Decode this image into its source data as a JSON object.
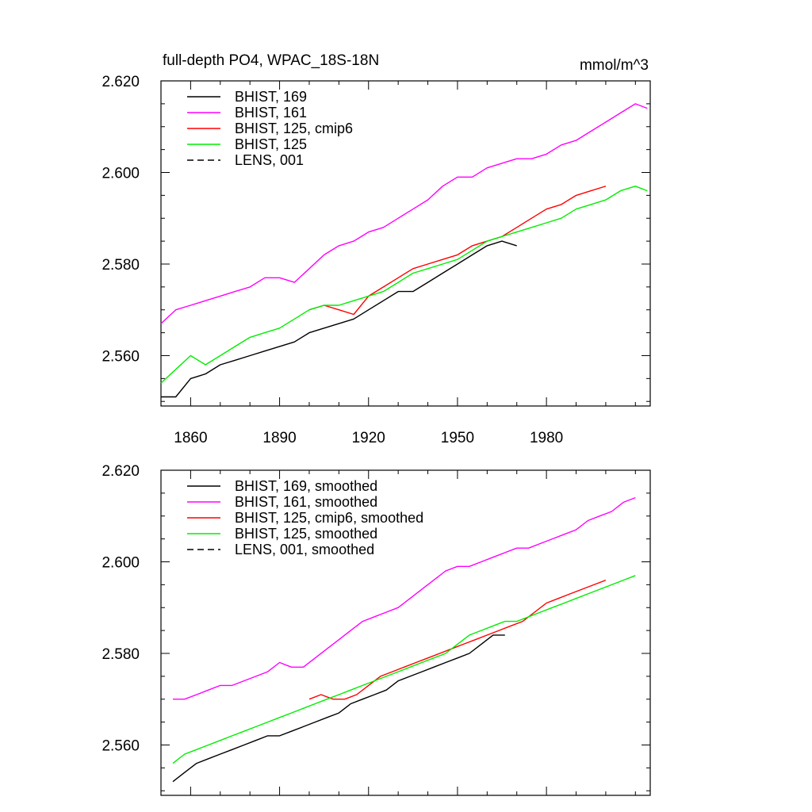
{
  "figure": {
    "title_left": "full-depth PO4, WPAC_18S-18N",
    "title_right": "mmol/m^3"
  },
  "chart_data": [
    {
      "type": "line",
      "panel": "top",
      "xlim": [
        1850,
        2015
      ],
      "ylim": [
        2.549,
        2.62
      ],
      "xticks": [
        1860,
        1890,
        1920,
        1950,
        1980
      ],
      "xticklabels": [
        "1860",
        "1890",
        "1920",
        "1950",
        "1980"
      ],
      "yticks": [
        2.56,
        2.58,
        2.6,
        2.62
      ],
      "yticklabels": [
        "2.560",
        "2.580",
        "2.600",
        "2.620"
      ],
      "grid": false,
      "legend_position": "top-left",
      "series": [
        {
          "name": "BHIST, 169",
          "color": "#000000",
          "dash": "solid",
          "x": [
            1850,
            1855,
            1860,
            1865,
            1870,
            1875,
            1880,
            1885,
            1890,
            1895,
            1900,
            1905,
            1910,
            1915,
            1920,
            1925,
            1930,
            1935,
            1940,
            1945,
            1950,
            1955,
            1960,
            1965,
            1970
          ],
          "y": [
            2.551,
            2.551,
            2.555,
            2.556,
            2.558,
            2.559,
            2.56,
            2.561,
            2.562,
            2.563,
            2.565,
            2.566,
            2.567,
            2.568,
            2.57,
            2.572,
            2.574,
            2.574,
            2.576,
            2.578,
            2.58,
            2.582,
            2.584,
            2.585,
            2.584
          ]
        },
        {
          "name": "BHIST, 161",
          "color": "#ff00ff",
          "dash": "solid",
          "x": [
            1850,
            1855,
            1860,
            1865,
            1870,
            1875,
            1880,
            1885,
            1890,
            1895,
            1900,
            1905,
            1910,
            1915,
            1920,
            1925,
            1930,
            1935,
            1940,
            1945,
            1950,
            1955,
            1960,
            1965,
            1970,
            1975,
            1980,
            1985,
            1990,
            1995,
            2000,
            2005,
            2010,
            2014
          ],
          "y": [
            2.567,
            2.57,
            2.571,
            2.572,
            2.573,
            2.574,
            2.575,
            2.577,
            2.577,
            2.576,
            2.579,
            2.582,
            2.584,
            2.585,
            2.587,
            2.588,
            2.59,
            2.592,
            2.594,
            2.597,
            2.599,
            2.599,
            2.601,
            2.602,
            2.603,
            2.603,
            2.604,
            2.606,
            2.607,
            2.609,
            2.611,
            2.613,
            2.615,
            2.614
          ]
        },
        {
          "name": "BHIST, 125, cmip6",
          "color": "#ff0000",
          "dash": "solid",
          "x": [
            1900,
            1905,
            1910,
            1915,
            1920,
            1925,
            1930,
            1935,
            1940,
            1945,
            1950,
            1955,
            1960,
            1965,
            1970,
            1975,
            1980,
            1985,
            1990,
            1995,
            2000
          ],
          "y": [
            2.57,
            2.571,
            2.57,
            2.569,
            2.573,
            2.575,
            2.577,
            2.579,
            2.58,
            2.581,
            2.582,
            2.584,
            2.585,
            2.586,
            2.588,
            2.59,
            2.592,
            2.593,
            2.595,
            2.596,
            2.597
          ]
        },
        {
          "name": "BHIST, 125",
          "color": "#00ee00",
          "dash": "solid",
          "x": [
            1850,
            1855,
            1860,
            1865,
            1870,
            1875,
            1880,
            1885,
            1890,
            1895,
            1900,
            1905,
            1910,
            1915,
            1920,
            1925,
            1930,
            1935,
            1940,
            1945,
            1950,
            1955,
            1960,
            1965,
            1970,
            1975,
            1980,
            1985,
            1990,
            1995,
            2000,
            2005,
            2010,
            2014
          ],
          "y": [
            2.554,
            2.557,
            2.56,
            2.558,
            2.56,
            2.562,
            2.564,
            2.565,
            2.566,
            2.568,
            2.57,
            2.571,
            2.571,
            2.572,
            2.573,
            2.574,
            2.576,
            2.578,
            2.579,
            2.58,
            2.581,
            2.583,
            2.585,
            2.586,
            2.587,
            2.588,
            2.589,
            2.59,
            2.592,
            2.593,
            2.594,
            2.596,
            2.597,
            2.596
          ]
        },
        {
          "name": "LENS, 001",
          "color": "#000000",
          "dash": "dashed",
          "x": [],
          "y": []
        }
      ]
    },
    {
      "type": "line",
      "panel": "bottom",
      "xlim": [
        1850,
        2015
      ],
      "ylim": [
        2.549,
        2.62
      ],
      "xticks": [
        1860,
        1890,
        1920,
        1950,
        1980
      ],
      "xticklabels": [],
      "yticks": [
        2.56,
        2.58,
        2.6,
        2.62
      ],
      "yticklabels": [
        "2.560",
        "2.580",
        "2.600",
        "2.620"
      ],
      "grid": false,
      "legend_position": "top-left",
      "series": [
        {
          "name": "BHIST, 169, smoothed",
          "color": "#000000",
          "dash": "solid",
          "x": [
            1854,
            1858,
            1862,
            1866,
            1870,
            1874,
            1878,
            1882,
            1886,
            1890,
            1894,
            1898,
            1902,
            1906,
            1910,
            1914,
            1918,
            1922,
            1926,
            1930,
            1934,
            1938,
            1942,
            1946,
            1950,
            1954,
            1958,
            1962,
            1966
          ],
          "y": [
            2.552,
            2.554,
            2.556,
            2.557,
            2.558,
            2.559,
            2.56,
            2.561,
            2.562,
            2.562,
            2.563,
            2.564,
            2.565,
            2.566,
            2.567,
            2.569,
            2.57,
            2.571,
            2.572,
            2.574,
            2.575,
            2.576,
            2.577,
            2.578,
            2.579,
            2.58,
            2.582,
            2.584,
            2.584
          ]
        },
        {
          "name": "BHIST, 161, smoothed",
          "color": "#ff00ff",
          "dash": "solid",
          "x": [
            1854,
            1858,
            1862,
            1866,
            1870,
            1874,
            1878,
            1882,
            1886,
            1890,
            1894,
            1898,
            1902,
            1906,
            1910,
            1914,
            1918,
            1922,
            1926,
            1930,
            1934,
            1938,
            1942,
            1946,
            1950,
            1954,
            1958,
            1962,
            1966,
            1970,
            1974,
            1978,
            1982,
            1986,
            1990,
            1994,
            1998,
            2002,
            2006,
            2010
          ],
          "y": [
            2.57,
            2.57,
            2.571,
            2.572,
            2.573,
            2.573,
            2.574,
            2.575,
            2.576,
            2.578,
            2.577,
            2.577,
            2.579,
            2.581,
            2.583,
            2.585,
            2.587,
            2.588,
            2.589,
            2.59,
            2.592,
            2.594,
            2.596,
            2.598,
            2.599,
            2.599,
            2.6,
            2.601,
            2.602,
            2.603,
            2.603,
            2.604,
            2.605,
            2.606,
            2.607,
            2.609,
            2.61,
            2.611,
            2.613,
            2.614
          ]
        },
        {
          "name": "BHIST, 125, cmip6, smoothed",
          "color": "#ff0000",
          "dash": "solid",
          "x": [
            1900,
            1904,
            1908,
            1912,
            1916,
            1920,
            1924,
            1928,
            1932,
            1936,
            1940,
            1944,
            1948,
            1952,
            1956,
            1960,
            1964,
            1968,
            1972,
            1976,
            1980,
            1984,
            1988,
            1992,
            1996,
            2000
          ],
          "y": [
            2.57,
            2.571,
            2.57,
            2.57,
            2.571,
            2.573,
            2.575,
            2.576,
            2.577,
            2.578,
            2.579,
            2.58,
            2.581,
            2.582,
            2.583,
            2.584,
            2.585,
            2.586,
            2.587,
            2.589,
            2.591,
            2.592,
            2.593,
            2.594,
            2.595,
            2.596
          ]
        },
        {
          "name": "BHIST, 125, smoothed",
          "color": "#00ee00",
          "dash": "solid",
          "x": [
            1854,
            1858,
            1862,
            1866,
            1870,
            1874,
            1878,
            1882,
            1886,
            1890,
            1894,
            1898,
            1902,
            1906,
            1910,
            1914,
            1918,
            1922,
            1926,
            1930,
            1934,
            1938,
            1942,
            1946,
            1950,
            1954,
            1958,
            1962,
            1966,
            1970,
            1974,
            1978,
            1982,
            1986,
            1990,
            1994,
            1998,
            2002,
            2006,
            2010
          ],
          "y": [
            2.556,
            2.558,
            2.559,
            2.56,
            2.561,
            2.562,
            2.563,
            2.564,
            2.565,
            2.566,
            2.567,
            2.568,
            2.569,
            2.57,
            2.571,
            2.572,
            2.573,
            2.574,
            2.575,
            2.576,
            2.577,
            2.578,
            2.579,
            2.58,
            2.582,
            2.584,
            2.585,
            2.586,
            2.587,
            2.587,
            2.588,
            2.589,
            2.59,
            2.591,
            2.592,
            2.593,
            2.594,
            2.595,
            2.596,
            2.597
          ]
        },
        {
          "name": "LENS, 001, smoothed",
          "color": "#000000",
          "dash": "dashed",
          "x": [],
          "y": []
        }
      ]
    }
  ]
}
